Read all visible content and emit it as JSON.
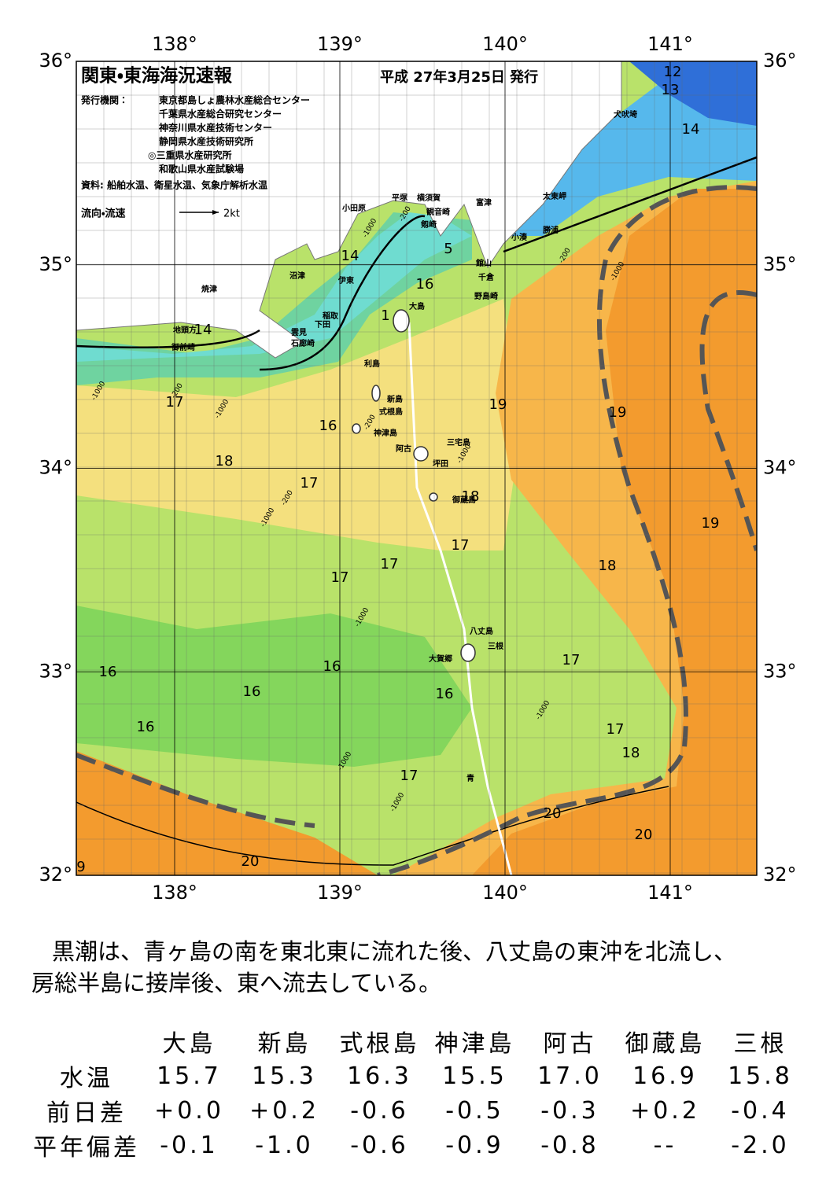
{
  "header": {
    "title": "関東・東海海況速報",
    "issued": "平成 27年3月25日 発行",
    "publisher_label": "発行機関：",
    "publishers": [
      "東京都島しょ農林水産総合センター",
      "千葉県水産総合研究センター",
      "神奈川県水産技術センター",
      "静岡県水産技術研究所",
      "◎三重県水産研究所",
      "和歌山県水産試験場"
    ],
    "source": "資料: 船舶水温、衛星水温、気象庁解析水温",
    "legend": {
      "label": "流向・流速",
      "speed": "2kt"
    }
  },
  "map": {
    "lon_ticks": [
      {
        "value": 138,
        "label": "138°"
      },
      {
        "value": 139,
        "label": "139°"
      },
      {
        "value": 140,
        "label": "140°"
      },
      {
        "value": 141,
        "label": "141°"
      }
    ],
    "lat_ticks": [
      {
        "value": 36,
        "label": "36°"
      },
      {
        "value": 35,
        "label": "35°"
      },
      {
        "value": 34,
        "label": "34°"
      },
      {
        "value": 33,
        "label": "33°"
      },
      {
        "value": 32,
        "label": "32°"
      }
    ],
    "places": [
      "小田原",
      "平塚",
      "横須賀",
      "観音崎",
      "富津",
      "剱崎",
      "太東岬",
      "勝浦",
      "小湊",
      "館山",
      "千倉",
      "野島崎",
      "沼津",
      "伊東",
      "焼津",
      "稲取",
      "下田",
      "雲見",
      "石廊崎",
      "地頭方",
      "御前崎",
      "大島",
      "利島",
      "新島",
      "式根島",
      "神津島",
      "三宅島",
      "阿古",
      "坪田",
      "御蔵島",
      "八丈島",
      "三根",
      "大賀郷",
      "青",
      "犬吠埼"
    ],
    "temperature_labels": [
      "12",
      "13",
      "14",
      "5",
      "14",
      "16",
      "1",
      "14",
      "17",
      "16",
      "19",
      "19",
      "18",
      "17",
      "18",
      "19",
      "17",
      "17",
      "18",
      "17",
      "16",
      "16",
      "17",
      "16",
      "16",
      "16",
      "17",
      "18",
      "17",
      "20",
      "20",
      "20",
      "9"
    ],
    "depth_labels": [
      "-200",
      "-1000",
      "-1000",
      "-200",
      "-1000",
      "-200",
      "-1000",
      "-200",
      "-1000",
      "-1000",
      "-1000",
      "-1000",
      "-1000",
      "-1000",
      "-200"
    ]
  },
  "summary": {
    "lines": [
      "黒潮は、青ヶ島の南を東北東に流れた後、八丈島の東沖を北流し、",
      "房総半島に接岸後、東へ流去している。"
    ]
  },
  "table": {
    "columns": [
      "大島",
      "新島",
      "式根島",
      "神津島",
      "阿古",
      "御蔵島",
      "三根"
    ],
    "rows": [
      [
        "水温",
        "15.7",
        "15.3",
        "16.3",
        "15.5",
        "17.0",
        "16.9",
        "15.8"
      ],
      [
        "前日差",
        "+0.0",
        "+0.2",
        "-0.6",
        "-0.5",
        "-0.3",
        "+0.2",
        "-0.4"
      ],
      [
        "平年偏差",
        "-0.1",
        "-1.0",
        "-0.6",
        "-0.9",
        "-0.8",
        "--",
        "-2.0"
      ]
    ]
  }
}
